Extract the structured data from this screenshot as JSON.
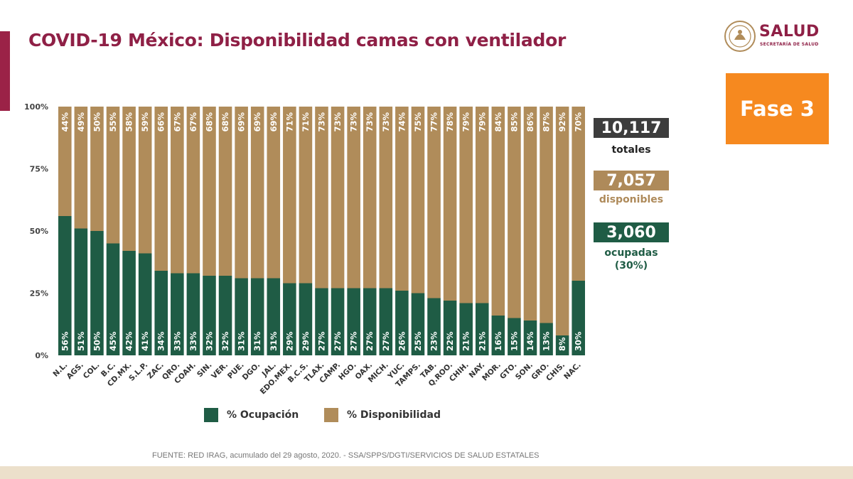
{
  "title": "COVID-19 México: Disponibilidad camas con ventilador",
  "logo": {
    "text": "SALUD",
    "subtext": "SECRETARÍA DE SALUD"
  },
  "phase": "Fase 3",
  "totals": {
    "total": {
      "value": "10,117",
      "label": "totales",
      "color": "#3d3d3d"
    },
    "available": {
      "value": "7,057",
      "label": "disponibles",
      "color": "#ae8a5a"
    },
    "occupied": {
      "value": "3,060",
      "label": "ocupadas",
      "sublabel": "(30%)",
      "color": "#1f5c45"
    }
  },
  "legend": [
    {
      "label": "% Ocupación",
      "color": "#1f5c45"
    },
    {
      "label": "% Disponibilidad",
      "color": "#b08c5a"
    }
  ],
  "source": "FUENTE: RED IRAG, acumulado del 29 agosto, 2020. -  SSA/SPPS/DGTI/SERVICIOS DE SALUD ESTATALES",
  "chart_data": {
    "type": "bar",
    "stacked": true,
    "y_ticks": [
      "0%",
      "25%",
      "50%",
      "75%",
      "100%"
    ],
    "ylim": [
      0,
      100
    ],
    "categories": [
      "N.L.",
      "AGS.",
      "COL.",
      "B.C.",
      "CD.MX.",
      "S.L.P.",
      "ZAC.",
      "QRO.",
      "COAH.",
      "SIN.",
      "VER.",
      "PUE.",
      "DGO.",
      "JAL.",
      "EDO.MEX.",
      "B.C.S.",
      "TLAX.",
      "CAMP.",
      "HGO.",
      "OAX.",
      "MICH.",
      "YUC.",
      "TAMPS.",
      "TAB.",
      "Q.ROO.",
      "CHIH.",
      "NAY.",
      "MOR.",
      "GTO.",
      "SON.",
      "GRO.",
      "CHIS.",
      "NAC."
    ],
    "series": [
      {
        "name": "% Ocupación",
        "color": "#1f5c45",
        "values": [
          56,
          51,
          50,
          45,
          42,
          41,
          34,
          33,
          33,
          32,
          32,
          31,
          31,
          31,
          29,
          29,
          27,
          27,
          27,
          27,
          27,
          26,
          25,
          23,
          22,
          21,
          21,
          16,
          15,
          14,
          13,
          8,
          30
        ],
        "labels": [
          "56%",
          "51%",
          "50%",
          "45%",
          "42%",
          "41%",
          "34%",
          "33%",
          "33%",
          "32%",
          "32%",
          "31%",
          "31%",
          "31%",
          "29%",
          "29%",
          "27%",
          "27%",
          "27%",
          "27%",
          "27%",
          "26%",
          "25%",
          "23%",
          "22%",
          "21%",
          "21%",
          "16%",
          "15%",
          "14%",
          "13%",
          "8%",
          "30%"
        ]
      },
      {
        "name": "% Disponibilidad",
        "color": "#b08c5a",
        "values": [
          44,
          49,
          50,
          55,
          58,
          59,
          66,
          67,
          67,
          68,
          68,
          69,
          69,
          69,
          71,
          71,
          73,
          73,
          73,
          73,
          73,
          74,
          75,
          77,
          78,
          79,
          79,
          84,
          85,
          86,
          87,
          92,
          70
        ],
        "labels": [
          "44%",
          "49%",
          "50%",
          "55%",
          "58%",
          "59%",
          "66%",
          "67%",
          "67%",
          "68%",
          "68%",
          "69%",
          "69%",
          "69%",
          "71%",
          "71%",
          "73%",
          "73%",
          "73%",
          "73%",
          "73%",
          "74%",
          "75%",
          "77%",
          "78%",
          "79%",
          "79%",
          "84%",
          "85%",
          "86%",
          "87%",
          "92%",
          "70%"
        ]
      }
    ]
  }
}
